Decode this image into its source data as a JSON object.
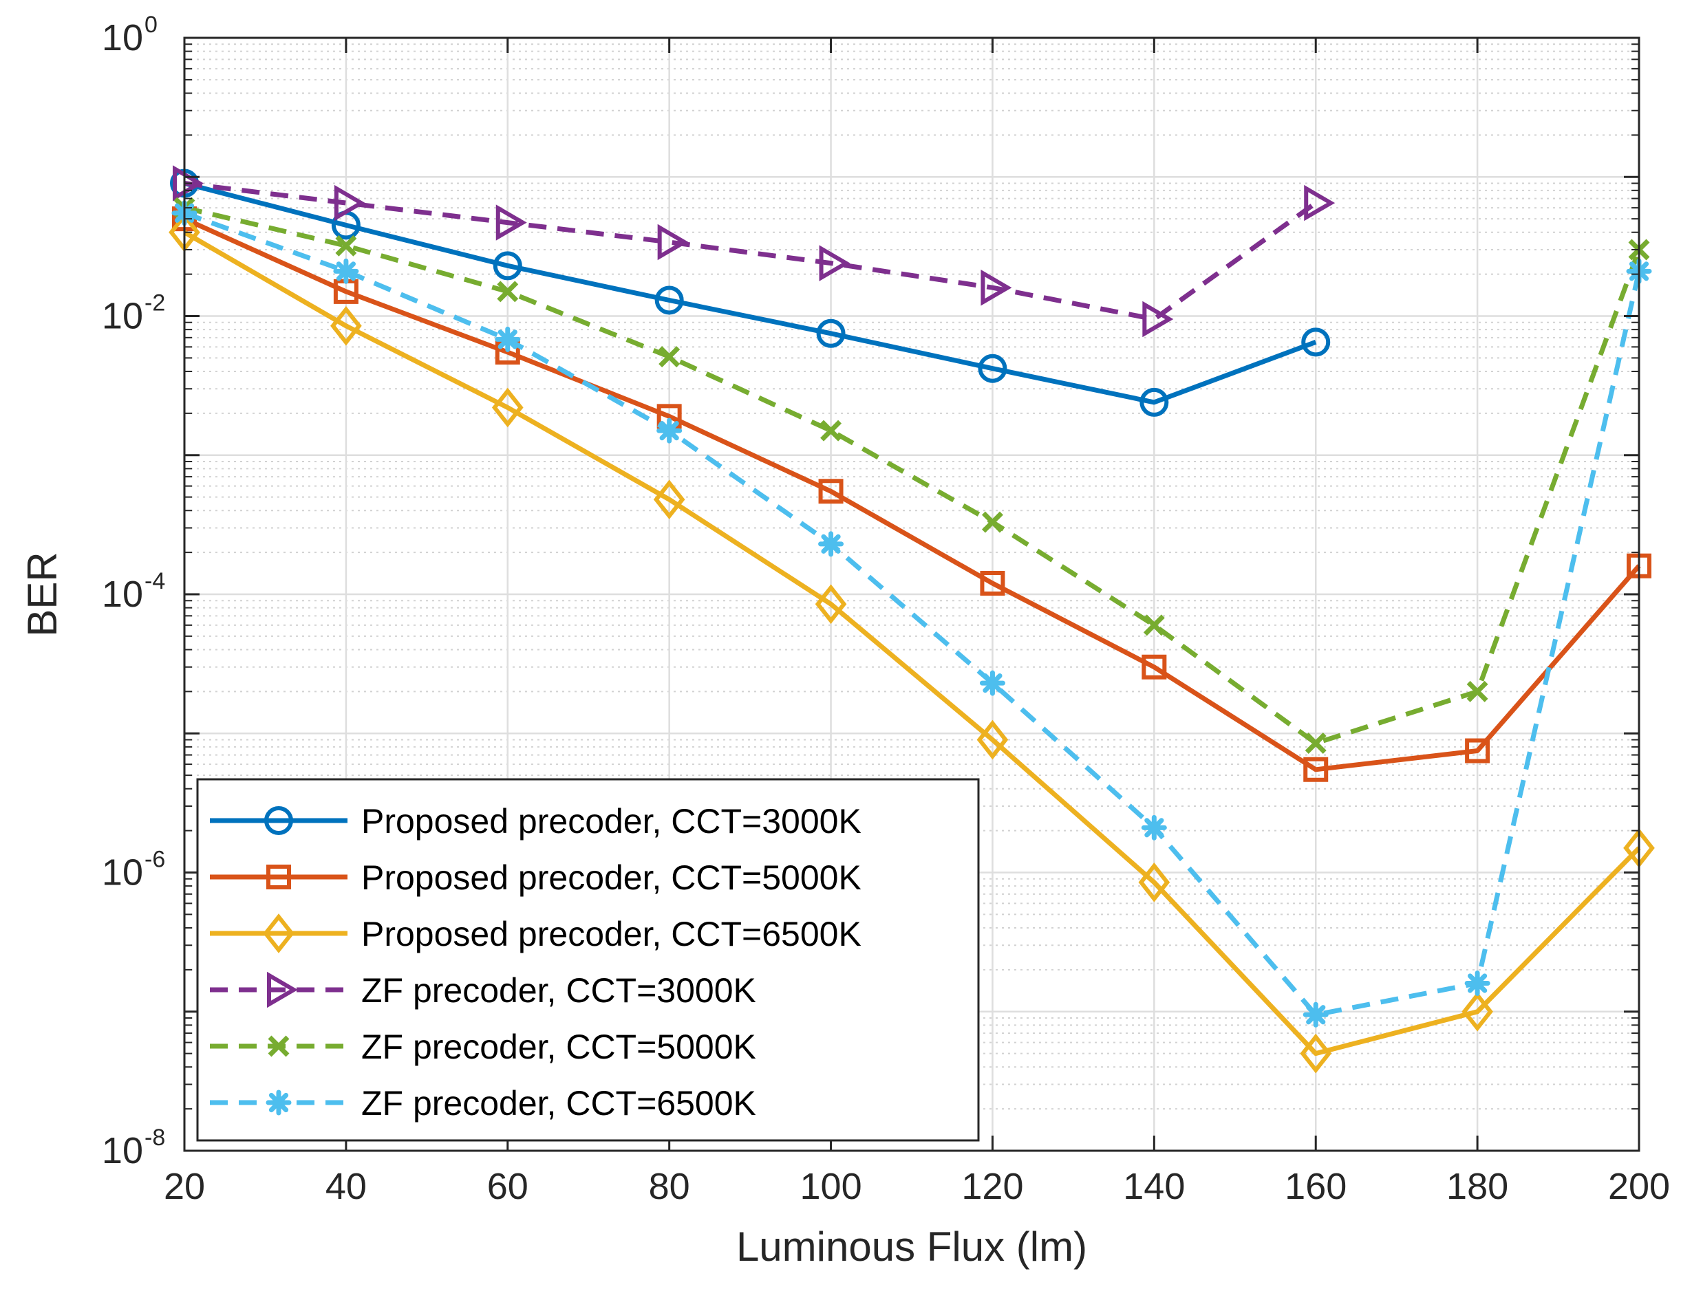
{
  "chart_data": {
    "type": "line",
    "title": "",
    "xlabel": "Luminous Flux (lm)",
    "ylabel": "BER",
    "xlim": [
      20,
      200
    ],
    "ylim": [
      1e-08,
      1
    ],
    "yscale": "log",
    "grid": true,
    "minor_grid": true,
    "legend_location": "bottom-left",
    "x_ticks": [
      20,
      40,
      60,
      80,
      100,
      120,
      140,
      160,
      180,
      200
    ],
    "y_ticks": [
      {
        "base": "10",
        "exp": "0",
        "value": 1
      },
      {
        "base": "10",
        "exp": "-2",
        "value": 0.01
      },
      {
        "base": "10",
        "exp": "-4",
        "value": 0.0001
      },
      {
        "base": "10",
        "exp": "-6",
        "value": 1e-06
      },
      {
        "base": "10",
        "exp": "-8",
        "value": 1e-08
      }
    ],
    "series": [
      {
        "name": "Proposed precoder, CCT=3000K",
        "color": "#0072BD",
        "dash": "solid",
        "marker": "circle",
        "x": [
          20,
          40,
          60,
          80,
          100,
          120,
          140,
          160
        ],
        "y": [
          0.09,
          0.045,
          0.023,
          0.013,
          0.0075,
          0.0042,
          0.0024,
          0.0065
        ]
      },
      {
        "name": "Proposed precoder, CCT=5000K",
        "color": "#D95319",
        "dash": "solid",
        "marker": "square",
        "x": [
          20,
          40,
          60,
          80,
          100,
          120,
          140,
          160,
          180,
          200
        ],
        "y": [
          0.05,
          0.015,
          0.0055,
          0.0019,
          0.00055,
          0.00012,
          3e-05,
          5.5e-06,
          7.5e-06,
          0.00016
        ]
      },
      {
        "name": "Proposed precoder, CCT=6500K",
        "color": "#EDB120",
        "dash": "solid",
        "marker": "diamond",
        "x": [
          20,
          40,
          60,
          80,
          100,
          120,
          140,
          160,
          180,
          200
        ],
        "y": [
          0.04,
          0.0085,
          0.0022,
          0.00048,
          8.5e-05,
          9e-06,
          8.5e-07,
          5e-08,
          1e-07,
          1.5e-06
        ]
      },
      {
        "name": "ZF precoder, CCT=3000K",
        "color": "#7E2F8E",
        "dash": "dashed",
        "marker": "triangle-right",
        "x": [
          20,
          40,
          60,
          80,
          100,
          120,
          140,
          160
        ],
        "y": [
          0.09,
          0.065,
          0.047,
          0.034,
          0.024,
          0.016,
          0.0095,
          0.065
        ]
      },
      {
        "name": "ZF precoder, CCT=5000K",
        "color": "#77AC30",
        "dash": "dashed",
        "marker": "x",
        "x": [
          20,
          40,
          60,
          80,
          100,
          120,
          140,
          160,
          180,
          200
        ],
        "y": [
          0.06,
          0.032,
          0.015,
          0.0051,
          0.0015,
          0.00033,
          6e-05,
          8.5e-06,
          2e-05,
          0.03
        ]
      },
      {
        "name": "ZF precoder, CCT=6500K",
        "color": "#4DBEEE",
        "dash": "dashed",
        "marker": "asterisk",
        "x": [
          20,
          40,
          60,
          80,
          100,
          120,
          140,
          160,
          180,
          200
        ],
        "y": [
          0.055,
          0.021,
          0.0068,
          0.0015,
          0.00023,
          2.3e-05,
          2.1e-06,
          9.5e-08,
          1.6e-07,
          0.021
        ]
      }
    ]
  }
}
